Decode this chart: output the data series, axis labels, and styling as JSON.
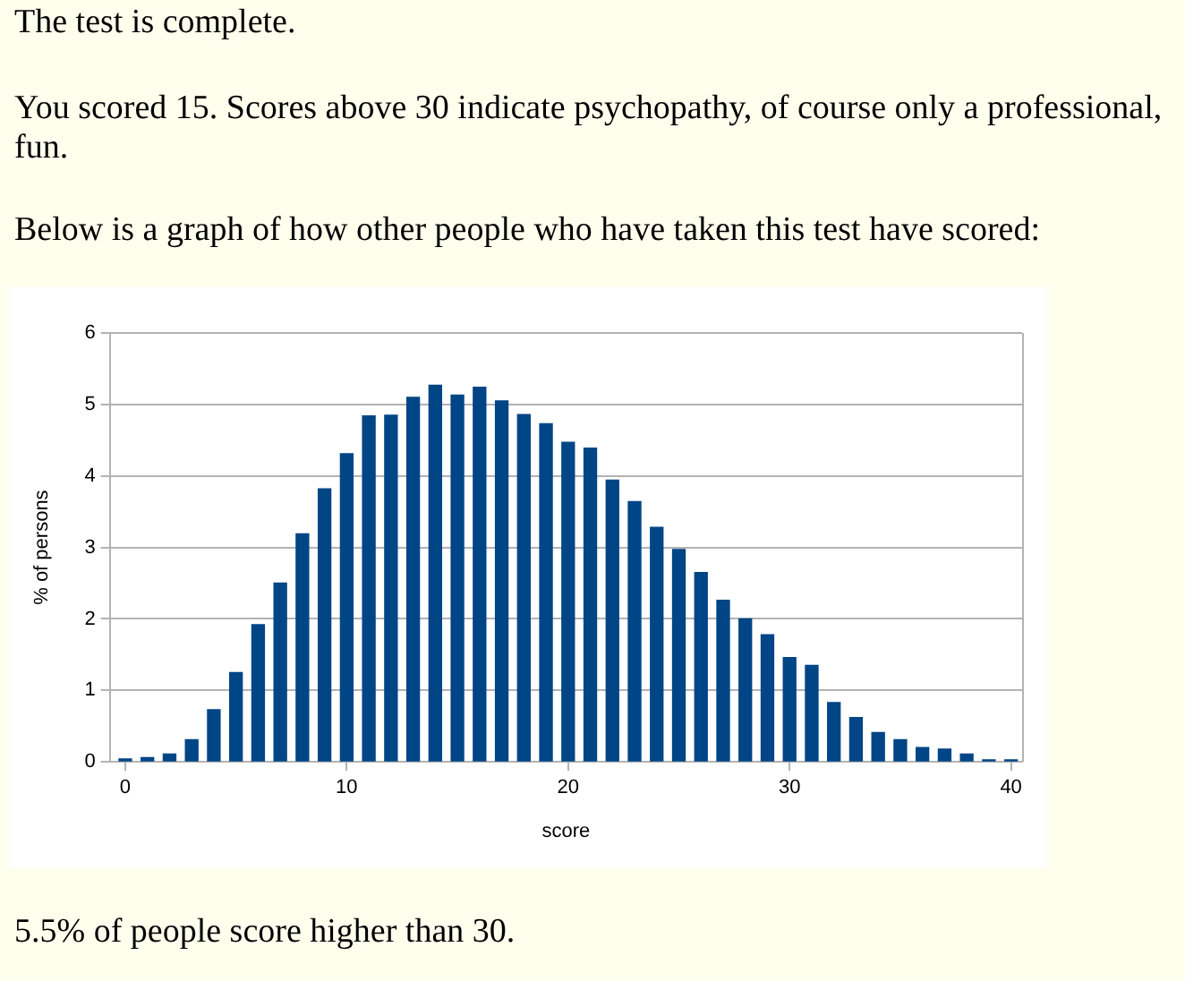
{
  "chart_data": {
    "type": "bar",
    "title": "The test is complete.",
    "annotations": [
      "You scored 15. Scores above 30 indicate psychopathy, of course only a professional, fun.",
      "Below is a graph of how other people who have taken this test have scored:",
      "5.5% of people score higher than 30."
    ],
    "xlabel": "score",
    "ylabel": "% of persons",
    "x": [
      0,
      1,
      2,
      3,
      4,
      5,
      6,
      7,
      8,
      9,
      10,
      11,
      12,
      13,
      14,
      15,
      16,
      17,
      18,
      19,
      20,
      21,
      22,
      23,
      24,
      25,
      26,
      27,
      28,
      29,
      30,
      31,
      32,
      33,
      34,
      35,
      36,
      37,
      38,
      39,
      40
    ],
    "values": [
      0.04,
      0.06,
      0.11,
      0.31,
      0.73,
      1.25,
      1.92,
      2.5,
      3.19,
      3.82,
      4.31,
      4.84,
      4.85,
      5.1,
      5.27,
      5.13,
      5.24,
      5.05,
      4.86,
      4.73,
      4.47,
      4.39,
      3.94,
      3.64,
      3.28,
      2.97,
      2.65,
      2.26,
      2.0,
      1.78,
      1.46,
      1.35,
      0.83,
      0.62,
      0.41,
      0.31,
      0.2,
      0.18,
      0.11,
      0.03,
      0.03
    ],
    "color": "#004586",
    "xlim": [
      -0.7,
      40.5
    ],
    "xticks": [
      0,
      10,
      20,
      30,
      40
    ],
    "ylim": [
      0,
      6
    ],
    "yticks": [
      0,
      1,
      2,
      3,
      4,
      5,
      6
    ],
    "grid": "y"
  }
}
